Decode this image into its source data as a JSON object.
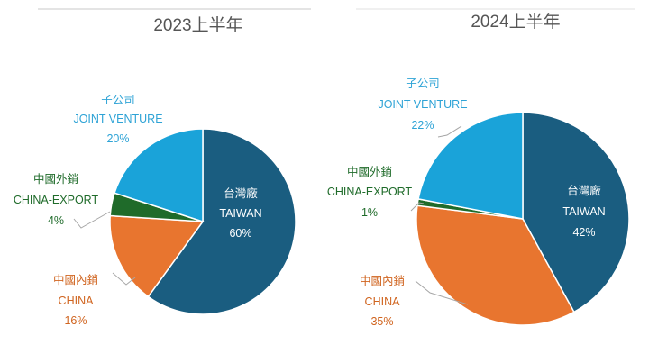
{
  "chart_data": [
    {
      "type": "pie",
      "title": "2023上半年",
      "slices": [
        {
          "name_zh": "台灣廠",
          "name_en": "TAIWAN",
          "value": 60,
          "label": "60%",
          "color": "#1a5d80"
        },
        {
          "name_zh": "中國內銷",
          "name_en": "CHINA",
          "value": 16,
          "label": "16%",
          "color": "#e8752f"
        },
        {
          "name_zh": "中國外銷",
          "name_en": "CHINA-EXPORT",
          "value": 4,
          "label": "4%",
          "color": "#1f6b2a"
        },
        {
          "name_zh": "子公司",
          "name_en": "JOINT VENTURE",
          "value": 20,
          "label": "20%",
          "color": "#1aa3d9"
        }
      ]
    },
    {
      "type": "pie",
      "title": "2024上半年",
      "slices": [
        {
          "name_zh": "台灣廠",
          "name_en": "TAIWAN",
          "value": 42,
          "label": "42%",
          "color": "#1a5d80"
        },
        {
          "name_zh": "中國內銷",
          "name_en": "CHINA",
          "value": 35,
          "label": "35%",
          "color": "#e8752f"
        },
        {
          "name_zh": "中國外銷",
          "name_en": "CHINA-EXPORT",
          "value": 1,
          "label": "1%",
          "color": "#1f6b2a"
        },
        {
          "name_zh": "子公司",
          "name_en": "JOINT VENTURE",
          "value": 22,
          "label": "22%",
          "color": "#1aa3d9"
        }
      ]
    }
  ],
  "label_colors": {
    "TAIWAN": "#ffffff",
    "CHINA": "#d0641f",
    "CHINA-EXPORT": "#1f6b2a",
    "JOINT VENTURE": "#2ea3d6"
  }
}
